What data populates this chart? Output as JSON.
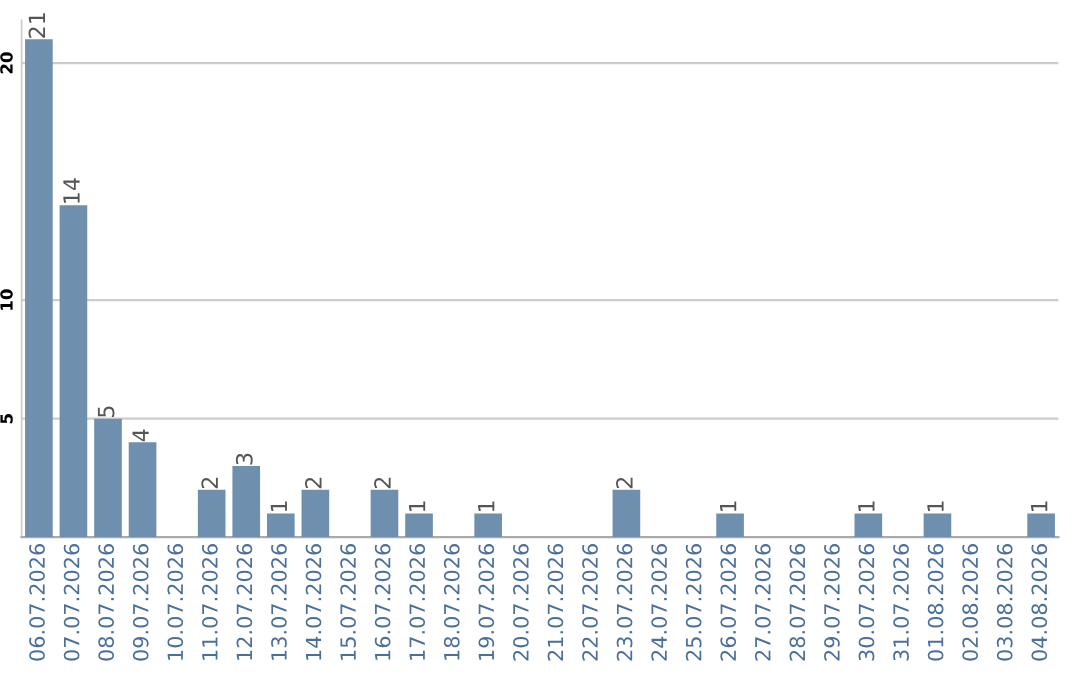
{
  "chart_data": {
    "type": "bar",
    "categories": [
      "06.07.2026",
      "07.07.2026",
      "08.07.2026",
      "09.07.2026",
      "10.07.2026",
      "11.07.2026",
      "12.07.2026",
      "13.07.2026",
      "14.07.2026",
      "15.07.2026",
      "16.07.2026",
      "17.07.2026",
      "18.07.2026",
      "19.07.2026",
      "20.07.2026",
      "21.07.2026",
      "22.07.2026",
      "23.07.2026",
      "24.07.2026",
      "25.07.2026",
      "26.07.2026",
      "27.07.2026",
      "28.07.2026",
      "29.07.2026",
      "30.07.2026",
      "31.07.2026",
      "01.08.2026",
      "02.08.2026",
      "03.08.2026",
      "04.08.2026"
    ],
    "values": [
      21,
      14,
      5,
      4,
      0,
      2,
      3,
      1,
      2,
      0,
      2,
      1,
      0,
      1,
      0,
      0,
      0,
      2,
      0,
      0,
      1,
      0,
      0,
      0,
      1,
      0,
      1,
      0,
      0,
      1
    ],
    "value_labels": [
      "21",
      "14",
      "5",
      "4",
      null,
      "2",
      "3",
      "1",
      "2",
      null,
      "2",
      "1",
      null,
      "1",
      null,
      null,
      null,
      "2",
      null,
      null,
      "1",
      null,
      null,
      null,
      "1",
      null,
      "1",
      null,
      null,
      "1"
    ],
    "color": "#6f8fae",
    "ylim": [
      0,
      21.8
    ],
    "yticks": [
      5,
      10,
      20
    ],
    "grid": "y"
  }
}
